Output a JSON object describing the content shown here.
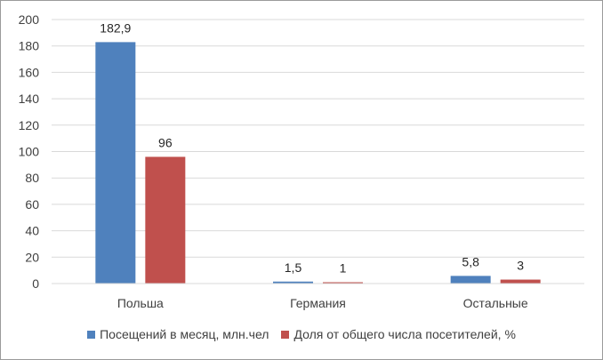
{
  "chart_data": {
    "type": "bar",
    "categories": [
      "Польша",
      "Германия",
      "Остальные"
    ],
    "series": [
      {
        "name": "Посещений в месяц, млн.чел",
        "values": [
          182.9,
          1.5,
          5.8
        ],
        "labels": [
          "182,9",
          "1,5",
          "5,8"
        ],
        "color": "#4f81bd"
      },
      {
        "name": "Доля от общего числа посетителей, %",
        "values": [
          96,
          1,
          3
        ],
        "labels": [
          "96",
          "1",
          "3"
        ],
        "color": "#c0504d"
      }
    ],
    "ylim": [
      0,
      200
    ],
    "yticks": [
      "0",
      "20",
      "40",
      "60",
      "80",
      "100",
      "120",
      "140",
      "160",
      "180",
      "200"
    ],
    "grid": true,
    "legend_position": "bottom"
  }
}
